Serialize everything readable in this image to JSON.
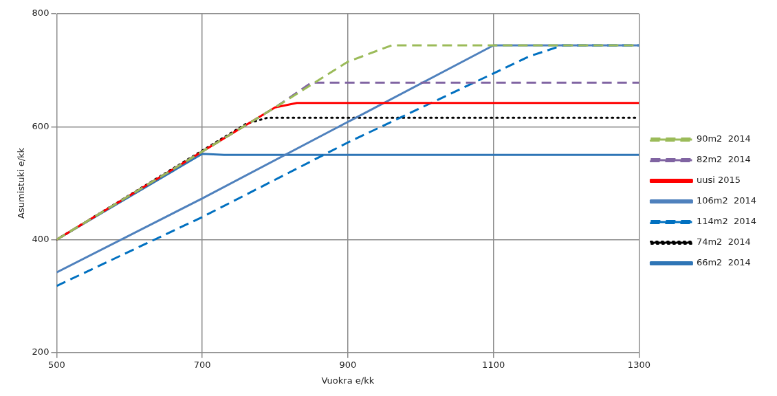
{
  "chart_data": {
    "type": "line",
    "xlabel": "Vuokra e/kk",
    "ylabel": "Asumistuki e/kk",
    "xlim": [
      500,
      1300
    ],
    "xticks": [
      500,
      700,
      900,
      1100,
      1300
    ],
    "ylim": [
      200,
      800
    ],
    "yticks": [
      200,
      400,
      600,
      800
    ],
    "grid": true,
    "legend": "right",
    "marker": "none",
    "series": [
      {
        "name": "90m2  2014",
        "color": "#9bbb59",
        "line_style": "dashed",
        "x": [
          500,
          700,
          800,
          900,
          960,
          1300
        ],
        "values": [
          400,
          556,
          634,
          715,
          744,
          744
        ]
      },
      {
        "name": "82m2  2014",
        "color": "#8064a2",
        "line_style": "dashed",
        "x": [
          500,
          700,
          800,
          850,
          1300
        ],
        "values": [
          400,
          556,
          634,
          678,
          678
        ]
      },
      {
        "name": "uusi 2015",
        "color": "#ff0000",
        "line_style": "solid",
        "x": [
          500,
          700,
          800,
          830,
          1300
        ],
        "values": [
          400,
          556,
          634,
          642,
          642
        ]
      },
      {
        "name": "106m2  2014",
        "color": "#4f81bd",
        "line_style": "solid",
        "x": [
          500,
          700,
          1100,
          1300
        ],
        "values": [
          342,
          473,
          744,
          744
        ]
      },
      {
        "name": "114m2  2014",
        "color": "#0070c0",
        "line_style": "dashed",
        "x": [
          500,
          700,
          900,
          1150,
          1195,
          1300
        ],
        "values": [
          318,
          440,
          572,
          725,
          744,
          744
        ]
      },
      {
        "name": "74m2  2014",
        "color": "#000000",
        "line_style": "dotted",
        "x": [
          500,
          760,
          790,
          1300
        ],
        "values": [
          400,
          605,
          616,
          616
        ]
      },
      {
        "name": "66m2  2014",
        "color": "#2e75b6",
        "line_style": "solid",
        "x": [
          500,
          700,
          730,
          1300
        ],
        "values": [
          400,
          552,
          550,
          550
        ]
      }
    ]
  }
}
